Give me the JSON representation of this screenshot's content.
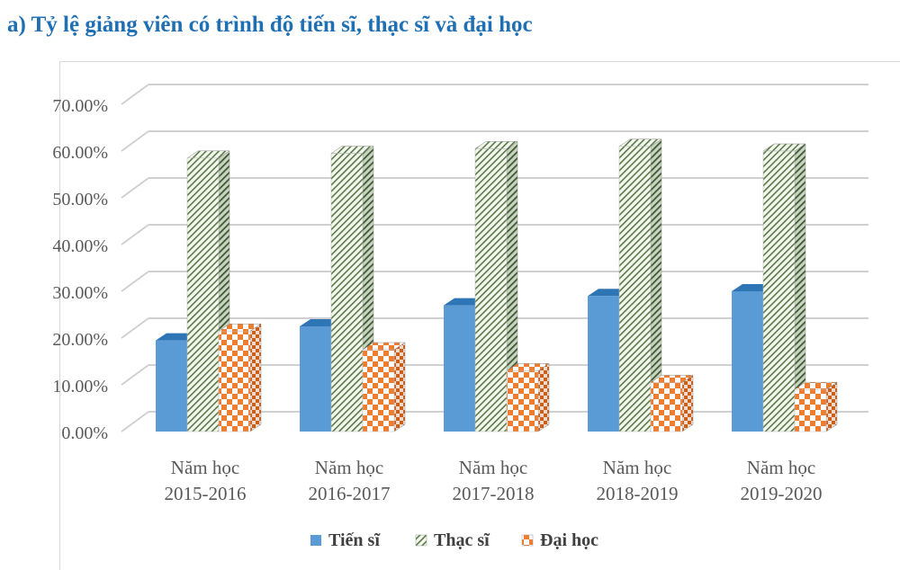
{
  "chart_data": {
    "type": "bar",
    "title": "a) Tỷ lệ giảng viên có trình độ tiến sĩ, thạc sĩ và đại học",
    "categories": [
      [
        "Năm học",
        "2015-2016"
      ],
      [
        "Năm học",
        "2016-2017"
      ],
      [
        "Năm học",
        "2017-2018"
      ],
      [
        "Năm học",
        "2018-2019"
      ],
      [
        "Năm học",
        "2019-2020"
      ]
    ],
    "series": [
      {
        "name": "Tiến sĩ",
        "values": [
          19.5,
          22.5,
          27.0,
          29.0,
          30.0
        ],
        "color": "#5b9bd5"
      },
      {
        "name": "Thạc sĩ",
        "values": [
          58.5,
          59.5,
          60.5,
          61.0,
          60.0
        ],
        "color": "#70ad47"
      },
      {
        "name": "Đại học",
        "values": [
          21.5,
          17.5,
          13.0,
          10.5,
          9.0
        ],
        "color": "#ed7d31"
      }
    ],
    "yticks": [
      "0.00%",
      "10.00%",
      "20.00%",
      "30.00%",
      "40.00%",
      "50.00%",
      "60.00%",
      "70.00%"
    ],
    "ylim": [
      0,
      70
    ],
    "grid": true,
    "legend_position": "bottom"
  }
}
